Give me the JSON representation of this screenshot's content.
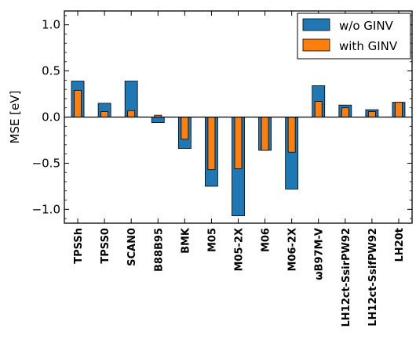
{
  "chart_data": {
    "type": "bar",
    "title": "",
    "xlabel": "",
    "ylabel": "MSE [eV]",
    "ylim": [
      -1.15,
      1.15
    ],
    "yticks": [
      -1.0,
      -0.5,
      0.0,
      0.5,
      1.0
    ],
    "ytick_labels": [
      "−1.0",
      "−0.5",
      "0.0",
      "0.5",
      "1.0"
    ],
    "grid": false,
    "legend_position": "top-right",
    "categories": [
      "TPSSh",
      "TPSS0",
      "SCAN0",
      "B88B95",
      "BMK",
      "M05",
      "M05-2X",
      "M06",
      "M06-2X",
      "ωB97M-V",
      "LH12ct-SsirPW92",
      "LH12ct-SsifPW92",
      "LH20t"
    ],
    "series": [
      {
        "name": "w/o GINV",
        "color": "#1f77b4",
        "values": [
          0.39,
          0.15,
          0.39,
          -0.06,
          -0.34,
          -0.75,
          -1.07,
          -0.36,
          -0.78,
          0.34,
          0.13,
          0.08,
          0.16
        ]
      },
      {
        "name": "with GINV",
        "color": "#ff7f0e",
        "values": [
          0.29,
          0.06,
          0.07,
          0.02,
          -0.24,
          -0.57,
          -0.56,
          -0.36,
          -0.38,
          0.17,
          0.1,
          0.06,
          0.16
        ]
      }
    ]
  }
}
